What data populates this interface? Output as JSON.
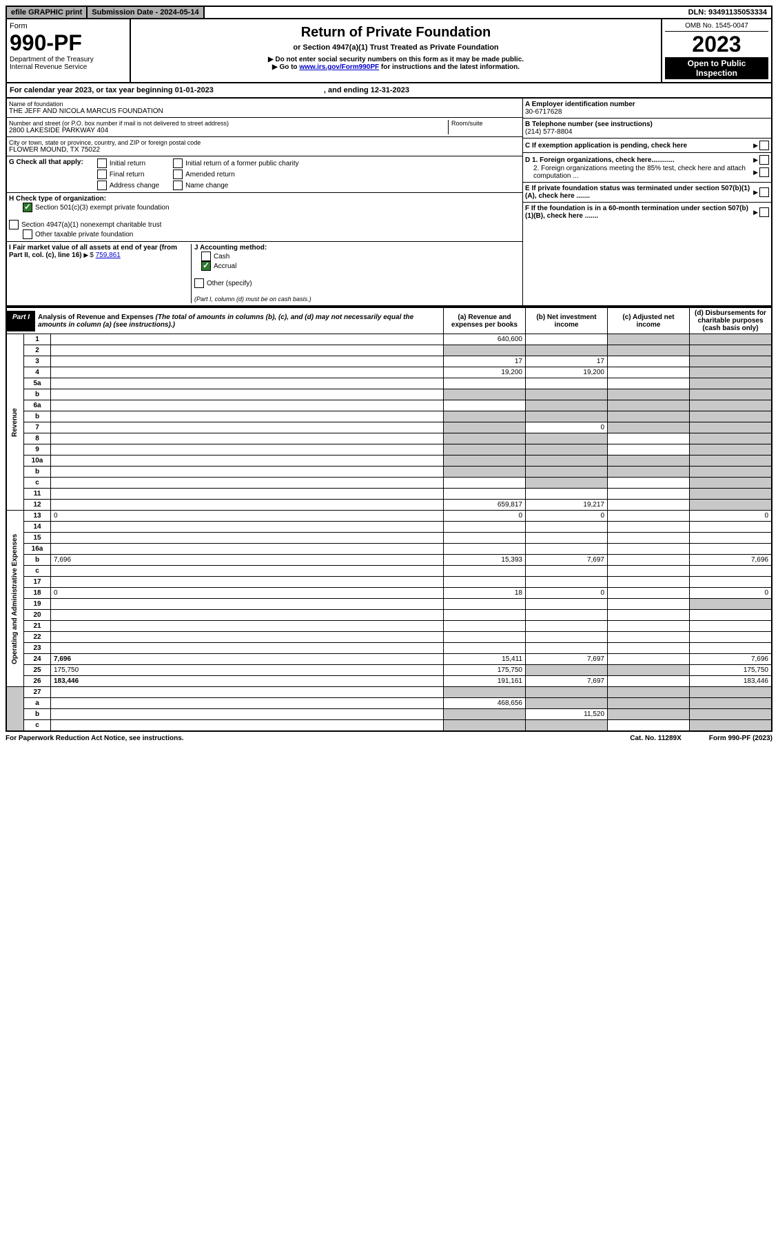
{
  "topbar": {
    "efile": "efile GRAPHIC print",
    "submission_label": "Submission Date - 2024-05-14",
    "dln": "DLN: 93491135053334"
  },
  "header": {
    "form_word": "Form",
    "form_no": "990-PF",
    "dept": "Department of the Treasury",
    "irs": "Internal Revenue Service",
    "title": "Return of Private Foundation",
    "subtitle": "or Section 4947(a)(1) Trust Treated as Private Foundation",
    "note1": "▶ Do not enter social security numbers on this form as it may be made public.",
    "note2": "▶ Go to www.irs.gov/Form990PF for instructions and the latest information.",
    "omb": "OMB No. 1545-0047",
    "year": "2023",
    "open": "Open to Public Inspection"
  },
  "cal_year": {
    "prefix": "For calendar year 2023, or tax year beginning 01-01-2023",
    "ending": ", and ending 12-31-2023"
  },
  "info": {
    "name_label": "Name of foundation",
    "name": "THE JEFF AND NICOLA MARCUS FOUNDATION",
    "addr_label": "Number and street (or P.O. box number if mail is not delivered to street address)",
    "addr": "2800 LAKESIDE PARKWAY 404",
    "room_label": "Room/suite",
    "city_label": "City or town, state or province, country, and ZIP or foreign postal code",
    "city": "FLOWER MOUND, TX  75022",
    "a_label": "A Employer identification number",
    "a_val": "30-6717628",
    "b_label": "B Telephone number (see instructions)",
    "b_val": "(214) 577-8804",
    "c_label": "C If exemption application is pending, check here",
    "d1_label": "D 1. Foreign organizations, check here............",
    "d2_label": "2. Foreign organizations meeting the 85% test, check here and attach computation ...",
    "e_label": "E  If private foundation status was terminated under section 507(b)(1)(A), check here .......",
    "f_label": "F  If the foundation is in a 60-month termination under section 507(b)(1)(B), check here ......."
  },
  "g": {
    "label": "G Check all that apply:",
    "opts": [
      "Initial return",
      "Final return",
      "Address change",
      "Initial return of a former public charity",
      "Amended return",
      "Name change"
    ]
  },
  "h": {
    "label": "H Check type of organization:",
    "opt1": "Section 501(c)(3) exempt private foundation",
    "opt2": "Section 4947(a)(1) nonexempt charitable trust",
    "opt3": "Other taxable private foundation"
  },
  "i": {
    "label": "I Fair market value of all assets at end of year (from Part II, col. (c), line 16)",
    "value": "759,861"
  },
  "j": {
    "label": "J Accounting method:",
    "cash": "Cash",
    "accrual": "Accrual",
    "other": "Other (specify)",
    "note": "(Part I, column (d) must be on cash basis.)"
  },
  "part1": {
    "label": "Part I",
    "title": "Analysis of Revenue and Expenses",
    "subtitle": "(The total of amounts in columns (b), (c), and (d) may not necessarily equal the amounts in column (a) (see instructions).)",
    "col_a": "(a)  Revenue and expenses per books",
    "col_b": "(b)  Net investment income",
    "col_c": "(c)  Adjusted net income",
    "col_d": "(d)  Disbursements for charitable purposes (cash basis only)"
  },
  "side": {
    "revenue": "Revenue",
    "expenses": "Operating and Administrative Expenses"
  },
  "rows": [
    {
      "n": "1",
      "d": "",
      "a": "640,600",
      "b": "",
      "c": "",
      "shade_c": true,
      "shade_d": true
    },
    {
      "n": "2",
      "d": "",
      "a": "",
      "b": "",
      "c": "",
      "shade_a": true,
      "shade_b": true,
      "shade_c": true,
      "shade_d": true
    },
    {
      "n": "3",
      "d": "",
      "a": "17",
      "b": "17",
      "c": "",
      "shade_d": true
    },
    {
      "n": "4",
      "d": "",
      "a": "19,200",
      "b": "19,200",
      "c": "",
      "shade_d": true
    },
    {
      "n": "5a",
      "d": "",
      "a": "",
      "b": "",
      "c": "",
      "shade_d": true
    },
    {
      "n": "b",
      "d": "",
      "a": "",
      "b": "",
      "c": "",
      "shade_a": true,
      "shade_b": true,
      "shade_c": true,
      "shade_d": true
    },
    {
      "n": "6a",
      "d": "",
      "a": "",
      "b": "",
      "c": "",
      "shade_b": true,
      "shade_c": true,
      "shade_d": true
    },
    {
      "n": "b",
      "d": "",
      "a": "",
      "b": "",
      "c": "",
      "shade_a": true,
      "shade_b": true,
      "shade_c": true,
      "shade_d": true
    },
    {
      "n": "7",
      "d": "",
      "a": "",
      "b": "0",
      "c": "",
      "shade_a": true,
      "shade_c": true,
      "shade_d": true
    },
    {
      "n": "8",
      "d": "",
      "a": "",
      "b": "",
      "c": "",
      "shade_a": true,
      "shade_b": true,
      "shade_d": true
    },
    {
      "n": "9",
      "d": "",
      "a": "",
      "b": "",
      "c": "",
      "shade_a": true,
      "shade_b": true,
      "shade_d": true
    },
    {
      "n": "10a",
      "d": "",
      "a": "",
      "b": "",
      "c": "",
      "shade_a": true,
      "shade_b": true,
      "shade_c": true,
      "shade_d": true
    },
    {
      "n": "b",
      "d": "",
      "a": "",
      "b": "",
      "c": "",
      "shade_a": true,
      "shade_b": true,
      "shade_c": true,
      "shade_d": true
    },
    {
      "n": "c",
      "d": "",
      "a": "",
      "b": "",
      "c": "",
      "shade_b": true,
      "shade_d": true
    },
    {
      "n": "11",
      "d": "",
      "a": "",
      "b": "",
      "c": "",
      "shade_d": true
    },
    {
      "n": "12",
      "d": "",
      "a": "659,817",
      "b": "19,217",
      "c": "",
      "bold": true,
      "shade_d": true
    }
  ],
  "exp_rows": [
    {
      "n": "13",
      "d": "0",
      "a": "0",
      "b": "0",
      "c": ""
    },
    {
      "n": "14",
      "d": "",
      "a": "",
      "b": "",
      "c": ""
    },
    {
      "n": "15",
      "d": "",
      "a": "",
      "b": "",
      "c": ""
    },
    {
      "n": "16a",
      "d": "",
      "a": "",
      "b": "",
      "c": ""
    },
    {
      "n": "b",
      "d": "7,696",
      "a": "15,393",
      "b": "7,697",
      "c": ""
    },
    {
      "n": "c",
      "d": "",
      "a": "",
      "b": "",
      "c": ""
    },
    {
      "n": "17",
      "d": "",
      "a": "",
      "b": "",
      "c": ""
    },
    {
      "n": "18",
      "d": "0",
      "a": "18",
      "b": "0",
      "c": ""
    },
    {
      "n": "19",
      "d": "",
      "a": "",
      "b": "",
      "c": "",
      "shade_d": true
    },
    {
      "n": "20",
      "d": "",
      "a": "",
      "b": "",
      "c": ""
    },
    {
      "n": "21",
      "d": "",
      "a": "",
      "b": "",
      "c": ""
    },
    {
      "n": "22",
      "d": "",
      "a": "",
      "b": "",
      "c": ""
    },
    {
      "n": "23",
      "d": "",
      "a": "",
      "b": "",
      "c": ""
    },
    {
      "n": "24",
      "d": "7,696",
      "a": "15,411",
      "b": "7,697",
      "c": "",
      "bold": true
    },
    {
      "n": "25",
      "d": "175,750",
      "a": "175,750",
      "b": "",
      "c": "",
      "shade_b": true,
      "shade_c": true
    },
    {
      "n": "26",
      "d": "183,446",
      "a": "191,161",
      "b": "7,697",
      "c": "",
      "bold": true
    }
  ],
  "bottom_rows": [
    {
      "n": "27",
      "d": "",
      "a": "",
      "b": "",
      "c": "",
      "shade_a": true,
      "shade_b": true,
      "shade_c": true,
      "shade_d": true
    },
    {
      "n": "a",
      "d": "",
      "a": "468,656",
      "b": "",
      "c": "",
      "bold": true,
      "shade_b": true,
      "shade_c": true,
      "shade_d": true
    },
    {
      "n": "b",
      "d": "",
      "a": "",
      "b": "11,520",
      "c": "",
      "bold": true,
      "shade_a": true,
      "shade_c": true,
      "shade_d": true
    },
    {
      "n": "c",
      "d": "",
      "a": "",
      "b": "",
      "c": "",
      "bold": true,
      "shade_a": true,
      "shade_b": true,
      "shade_d": true
    }
  ],
  "footer": {
    "pra": "For Paperwork Reduction Act Notice, see instructions.",
    "cat": "Cat. No. 11289X",
    "form": "Form 990-PF (2023)"
  }
}
